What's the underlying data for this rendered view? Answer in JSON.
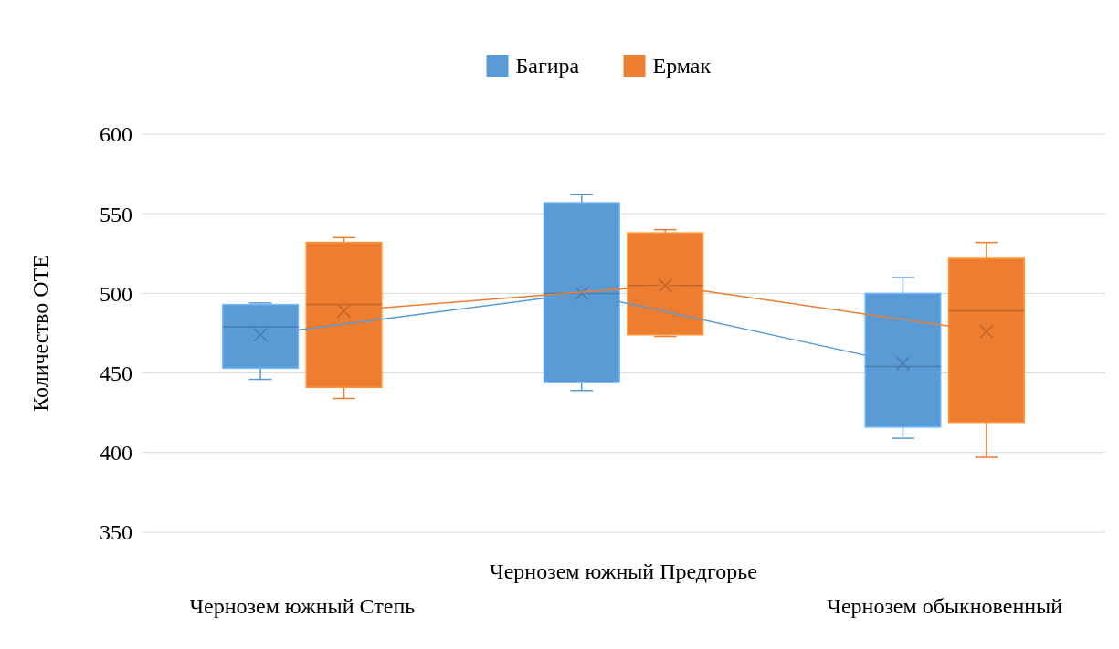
{
  "chart_data": {
    "type": "box",
    "ylabel": "Количество ОТЕ",
    "categories": [
      "Чернозем южный Степь",
      "Чернозем южный Предгорье",
      "Чернозем обыкновенный"
    ],
    "ylim": [
      350,
      600
    ],
    "yticks": [
      350,
      400,
      450,
      500,
      550,
      600
    ],
    "grid": "y",
    "legend": "top",
    "series": [
      {
        "name": "Багира",
        "color": "#5b9bd5",
        "boxes": [
          {
            "low": 446,
            "q1": 453,
            "median": 479,
            "q3": 493,
            "high": 494
          },
          {
            "low": 439,
            "q1": 444,
            "median": 500,
            "q3": 557,
            "high": 562
          },
          {
            "low": 409,
            "q1": 416,
            "median": 454,
            "q3": 500,
            "high": 510
          }
        ]
      },
      {
        "name": "Ермак",
        "color": "#ed7d31",
        "boxes": [
          {
            "low": 434,
            "q1": 441,
            "median": 493,
            "q3": 532,
            "high": 535
          },
          {
            "low": 473,
            "q1": 474,
            "median": 505,
            "q3": 538,
            "high": 540
          },
          {
            "low": 397,
            "q1": 419,
            "median": 489,
            "q3": 522,
            "high": 532
          }
        ]
      },
      {
        "type": "line",
        "color": "#5b9bd5",
        "marker": "cross",
        "values": [
          474,
          500,
          456
        ]
      },
      {
        "type": "line",
        "color": "#ed7d31",
        "marker": "cross",
        "values": [
          489,
          505,
          476
        ]
      }
    ]
  }
}
